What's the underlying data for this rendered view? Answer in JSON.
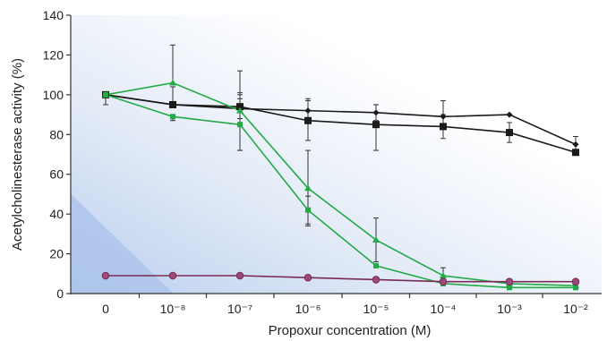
{
  "chart_data": {
    "type": "line",
    "title": "",
    "xlabel": "Propoxur concentration (M)",
    "ylabel": "Acetylcholinesterase activity (%)",
    "ylim": [
      0,
      140
    ],
    "yticks": [
      "0",
      "20",
      "40",
      "60",
      "80",
      "100",
      "120",
      "140"
    ],
    "categories": [
      "0",
      "10⁻⁸",
      "10⁻⁷",
      "10⁻⁶",
      "10⁻⁵",
      "10⁻⁴",
      "10⁻³",
      "10⁻²"
    ],
    "grid": false,
    "legend": "none",
    "series": [
      {
        "color": "#1a1a1a",
        "marker": "diamond",
        "values": [
          100,
          95,
          93,
          92,
          91,
          89,
          90,
          75
        ],
        "err_low": [
          null,
          null,
          8,
          null,
          4,
          4,
          null,
          4
        ],
        "err_high": [
          null,
          9,
          8,
          6,
          4,
          8,
          null,
          4
        ]
      },
      {
        "color": "#1a1a1a",
        "marker": "square",
        "values": [
          100,
          95,
          94,
          87,
          85,
          84,
          81,
          71
        ],
        "err_low": [
          5,
          null,
          6,
          10,
          13,
          6,
          5,
          null
        ],
        "err_high": [
          null,
          null,
          6,
          10,
          10,
          6,
          5,
          null
        ]
      },
      {
        "color": "#22aa44",
        "marker": "triangle",
        "values": [
          100,
          106,
          92,
          53,
          27,
          9,
          5,
          4
        ],
        "err_low": [
          null,
          null,
          20,
          19,
          11,
          4,
          null,
          null
        ],
        "err_high": [
          null,
          19,
          20,
          19,
          11,
          4,
          null,
          null
        ]
      },
      {
        "color": "#22aa44",
        "marker": "square-small",
        "values": [
          100,
          89,
          85,
          42,
          14,
          5,
          3,
          3
        ],
        "err_low": [
          null,
          2,
          13,
          7,
          null,
          null,
          null,
          null
        ],
        "err_high": [
          null,
          null,
          13,
          7,
          null,
          null,
          null,
          null
        ]
      },
      {
        "color": "#7a2a55",
        "marker": "circle",
        "marker_fill": "#9a4a78",
        "values": [
          9,
          9,
          9,
          8,
          7,
          6,
          6,
          6
        ],
        "err_low": [
          null,
          null,
          null,
          null,
          null,
          null,
          null,
          null
        ],
        "err_high": [
          null,
          null,
          null,
          null,
          null,
          null,
          null,
          null
        ]
      }
    ]
  }
}
